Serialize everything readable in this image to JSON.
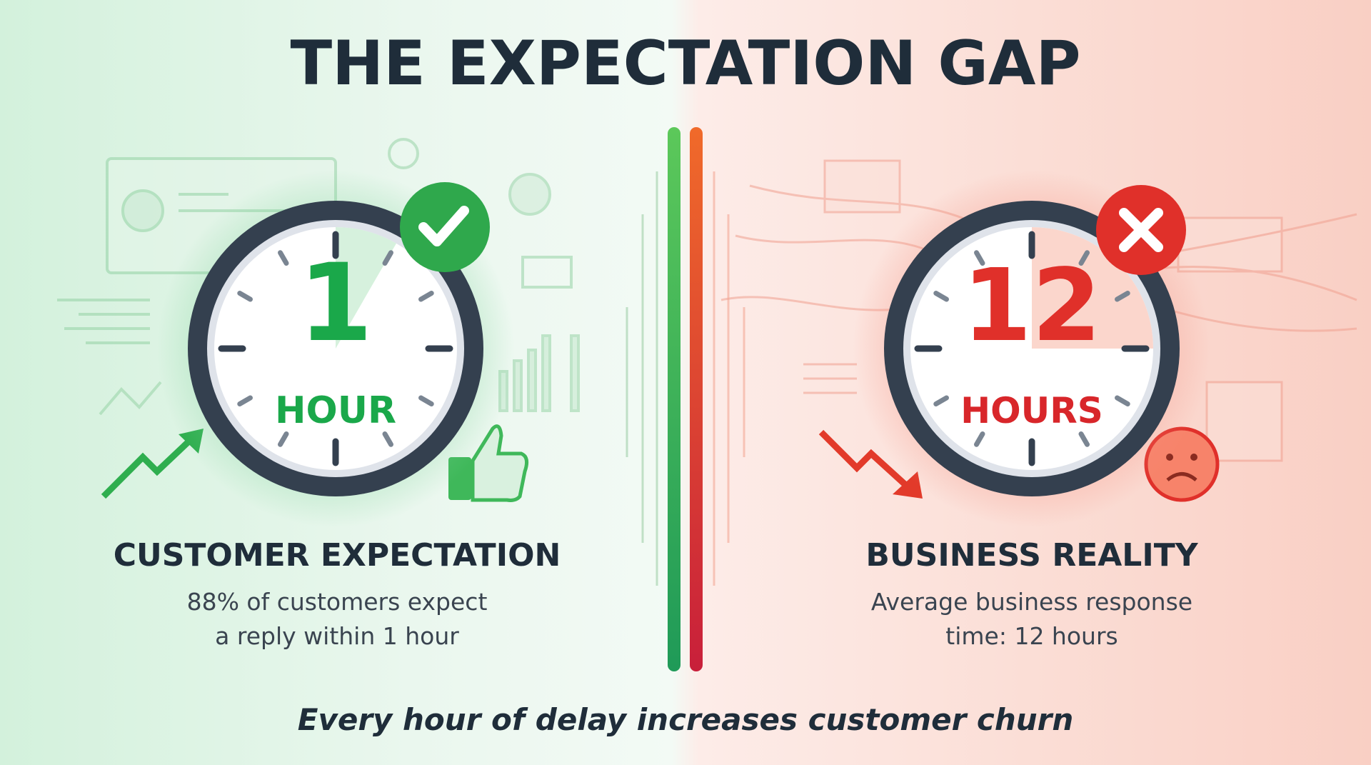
{
  "title": "THE EXPECTATION GAP",
  "left": {
    "number": "1",
    "unit": "HOUR",
    "heading": "CUSTOMER EXPECTATION",
    "line1": "88% of customers expect",
    "line2": "a reply within 1 hour",
    "badge_icon": "check-icon",
    "accent": "#1aa84a"
  },
  "right": {
    "number": "12",
    "unit": "HOURS",
    "heading": "BUSINESS REALITY",
    "line1": "Average business response",
    "line2": "time: 12 hours",
    "badge_icon": "x-icon",
    "accent": "#e0302a"
  },
  "footer": "Every hour of delay increases customer churn",
  "colors": {
    "dark": "#1f2d3a",
    "clock_ring": "#34404f",
    "green": "#1aa84a",
    "red": "#e0302a"
  }
}
